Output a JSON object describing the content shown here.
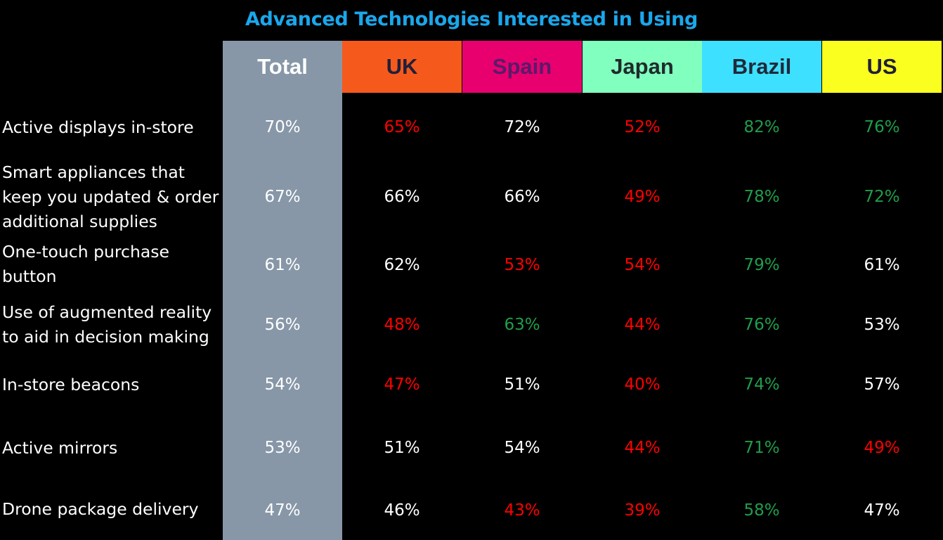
{
  "chart_data": {
    "type": "table",
    "title": "Advanced Technologies Interested in Using",
    "columns": [
      {
        "label": "Total",
        "bg": "#8797a8",
        "fg": "#ffffff"
      },
      {
        "label": "UK",
        "bg": "#f55a1c",
        "fg": "#1f1f3a"
      },
      {
        "label": "Spain",
        "bg": "#e8006f",
        "fg": "#5a1a6a"
      },
      {
        "label": "Japan",
        "bg": "#80ffbf",
        "fg": "#1f2a2a"
      },
      {
        "label": "Brazil",
        "bg": "#3ee0ff",
        "fg": "#1f2a3a"
      },
      {
        "label": "US",
        "bg": "#fbff1f",
        "fg": "#1f1f3a"
      }
    ],
    "rows": [
      {
        "label": "Active displays in-store",
        "values": [
          "70%",
          "65%",
          "72%",
          "52%",
          "82%",
          "76%"
        ],
        "status": [
          "neutral",
          "low",
          "neutral",
          "low",
          "high",
          "high"
        ]
      },
      {
        "label": "Smart appliances that keep you updated & order additional supplies",
        "label_lines": [
          "Smart appliances that",
          "keep you updated & order",
          "additional supplies"
        ],
        "values": [
          "67%",
          "66%",
          "66%",
          "49%",
          "78%",
          "72%"
        ],
        "status": [
          "neutral",
          "neutral",
          "neutral",
          "low",
          "high",
          "high"
        ]
      },
      {
        "label": "One-touch purchase button",
        "label_lines": [
          "One-touch purchase",
          "button"
        ],
        "values": [
          "61%",
          "62%",
          "53%",
          "54%",
          "79%",
          "61%"
        ],
        "status": [
          "neutral",
          "neutral",
          "low",
          "low",
          "high",
          "neutral"
        ]
      },
      {
        "label": "Use of augmented reality to aid in decision making",
        "label_lines": [
          "Use of augmented reality",
          "to aid in decision making"
        ],
        "values": [
          "56%",
          "48%",
          "63%",
          "44%",
          "76%",
          "53%"
        ],
        "status": [
          "neutral",
          "low",
          "high",
          "low",
          "high",
          "neutral"
        ]
      },
      {
        "label": "In-store beacons",
        "values": [
          "54%",
          "47%",
          "51%",
          "40%",
          "74%",
          "57%"
        ],
        "status": [
          "neutral",
          "low",
          "neutral",
          "low",
          "high",
          "neutral"
        ]
      },
      {
        "label": "Active mirrors",
        "values": [
          "53%",
          "51%",
          "54%",
          "44%",
          "71%",
          "49%"
        ],
        "status": [
          "neutral",
          "neutral",
          "neutral",
          "low",
          "high",
          "low"
        ]
      },
      {
        "label": "Drone package delivery",
        "values": [
          "47%",
          "46%",
          "43%",
          "39%",
          "58%",
          "47%"
        ],
        "status": [
          "neutral",
          "neutral",
          "low",
          "low",
          "high",
          "neutral"
        ]
      }
    ],
    "colors": {
      "neutral": "#ffffff",
      "low": "#ff0000",
      "high": "#1f9e4a",
      "title": "#1aa7ec",
      "background": "#000000"
    }
  }
}
